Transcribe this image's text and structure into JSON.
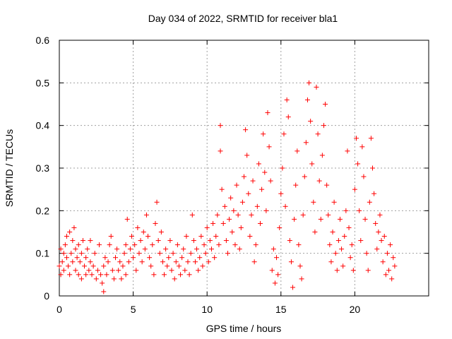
{
  "chart_data": {
    "type": "scatter",
    "title": "Day 034 of 2022, SRMTID for receiver bla1",
    "xlabel": "GPS time / hours",
    "ylabel": "SRMTID / TECUs",
    "xlim": [
      0,
      25
    ],
    "ylim": [
      0,
      0.6
    ],
    "x_ticks": [
      0,
      5,
      10,
      15,
      20
    ],
    "x_tick_labels": [
      "0",
      "5",
      "10",
      "15",
      "20"
    ],
    "y_ticks": [
      0,
      0.1,
      0.2,
      0.3,
      0.4,
      0.5,
      0.6
    ],
    "y_tick_labels": [
      "0",
      "0.1",
      "0.2",
      "0.3",
      "0.4",
      "0.5",
      "0.6"
    ],
    "grid": true,
    "marker": "+",
    "series": [
      {
        "name": "SRMTID",
        "color": "#ff0000",
        "points": [
          [
            0.0,
            0.07
          ],
          [
            0.1,
            0.05
          ],
          [
            0.1,
            0.11
          ],
          [
            0.2,
            0.08
          ],
          [
            0.3,
            0.1
          ],
          [
            0.3,
            0.06
          ],
          [
            0.4,
            0.12
          ],
          [
            0.5,
            0.09
          ],
          [
            0.5,
            0.14
          ],
          [
            0.6,
            0.07
          ],
          [
            0.7,
            0.05
          ],
          [
            0.7,
            0.15
          ],
          [
            0.8,
            0.1
          ],
          [
            0.9,
            0.13
          ],
          [
            0.9,
            0.08
          ],
          [
            1.0,
            0.16
          ],
          [
            1.1,
            0.11
          ],
          [
            1.1,
            0.06
          ],
          [
            1.2,
            0.09
          ],
          [
            1.3,
            0.12
          ],
          [
            1.3,
            0.05
          ],
          [
            1.4,
            0.08
          ],
          [
            1.5,
            0.1
          ],
          [
            1.5,
            0.04
          ],
          [
            1.6,
            0.13
          ],
          [
            1.7,
            0.07
          ],
          [
            1.8,
            0.09
          ],
          [
            1.8,
            0.05
          ],
          [
            1.9,
            0.11
          ],
          [
            2.0,
            0.06
          ],
          [
            2.1,
            0.08
          ],
          [
            2.1,
            0.13
          ],
          [
            2.2,
            0.05
          ],
          [
            2.3,
            0.07
          ],
          [
            2.4,
            0.1
          ],
          [
            2.5,
            0.04
          ],
          [
            2.6,
            0.06
          ],
          [
            2.7,
            0.12
          ],
          [
            2.8,
            0.05
          ],
          [
            2.9,
            0.03
          ],
          [
            3.0,
            0.01
          ],
          [
            3.0,
            0.07
          ],
          [
            3.1,
            0.09
          ],
          [
            3.2,
            0.05
          ],
          [
            3.3,
            0.08
          ],
          [
            3.4,
            0.12
          ],
          [
            3.5,
            0.14
          ],
          [
            3.6,
            0.06
          ],
          [
            3.7,
            0.04
          ],
          [
            3.8,
            0.09
          ],
          [
            3.9,
            0.11
          ],
          [
            4.0,
            0.06
          ],
          [
            4.1,
            0.08
          ],
          [
            4.2,
            0.04
          ],
          [
            4.3,
            0.07
          ],
          [
            4.4,
            0.1
          ],
          [
            4.5,
            0.12
          ],
          [
            4.5,
            0.05
          ],
          [
            4.6,
            0.18
          ],
          [
            4.7,
            0.08
          ],
          [
            4.8,
            0.11
          ],
          [
            4.9,
            0.14
          ],
          [
            5.0,
            0.09
          ],
          [
            5.1,
            0.12
          ],
          [
            5.2,
            0.06
          ],
          [
            5.3,
            0.16
          ],
          [
            5.4,
            0.1
          ],
          [
            5.5,
            0.13
          ],
          [
            5.6,
            0.08
          ],
          [
            5.7,
            0.15
          ],
          [
            5.8,
            0.11
          ],
          [
            5.9,
            0.19
          ],
          [
            6.0,
            0.14
          ],
          [
            6.1,
            0.09
          ],
          [
            6.2,
            0.07
          ],
          [
            6.3,
            0.12
          ],
          [
            6.4,
            0.05
          ],
          [
            6.5,
            0.17
          ],
          [
            6.6,
            0.22
          ],
          [
            6.7,
            0.13
          ],
          [
            6.8,
            0.1
          ],
          [
            6.9,
            0.15
          ],
          [
            7.0,
            0.08
          ],
          [
            7.1,
            0.05
          ],
          [
            7.2,
            0.11
          ],
          [
            7.3,
            0.07
          ],
          [
            7.4,
            0.09
          ],
          [
            7.5,
            0.13
          ],
          [
            7.6,
            0.06
          ],
          [
            7.7,
            0.1
          ],
          [
            7.8,
            0.04
          ],
          [
            7.9,
            0.08
          ],
          [
            8.0,
            0.12
          ],
          [
            8.1,
            0.07
          ],
          [
            8.2,
            0.05
          ],
          [
            8.3,
            0.09
          ],
          [
            8.4,
            0.11
          ],
          [
            8.5,
            0.06
          ],
          [
            8.6,
            0.14
          ],
          [
            8.7,
            0.08
          ],
          [
            8.8,
            0.05
          ],
          [
            8.9,
            0.1
          ],
          [
            9.0,
            0.19
          ],
          [
            9.1,
            0.13
          ],
          [
            9.2,
            0.08
          ],
          [
            9.3,
            0.11
          ],
          [
            9.4,
            0.06
          ],
          [
            9.5,
            0.09
          ],
          [
            9.6,
            0.14
          ],
          [
            9.7,
            0.07
          ],
          [
            9.8,
            0.12
          ],
          [
            9.9,
            0.1
          ],
          [
            10.0,
            0.16
          ],
          [
            10.1,
            0.08
          ],
          [
            10.2,
            0.13
          ],
          [
            10.3,
            0.11
          ],
          [
            10.4,
            0.17
          ],
          [
            10.5,
            0.09
          ],
          [
            10.6,
            0.14
          ],
          [
            10.7,
            0.19
          ],
          [
            10.8,
            0.12
          ],
          [
            10.9,
            0.4
          ],
          [
            10.9,
            0.34
          ],
          [
            11.0,
            0.25
          ],
          [
            11.1,
            0.17
          ],
          [
            11.2,
            0.21
          ],
          [
            11.3,
            0.13
          ],
          [
            11.4,
            0.1
          ],
          [
            11.5,
            0.18
          ],
          [
            11.6,
            0.23
          ],
          [
            11.7,
            0.15
          ],
          [
            11.8,
            0.2
          ],
          [
            11.9,
            0.12
          ],
          [
            12.0,
            0.26
          ],
          [
            12.1,
            0.19
          ],
          [
            12.2,
            0.11
          ],
          [
            12.3,
            0.16
          ],
          [
            12.4,
            0.22
          ],
          [
            12.5,
            0.28
          ],
          [
            12.6,
            0.39
          ],
          [
            12.7,
            0.33
          ],
          [
            12.8,
            0.24
          ],
          [
            12.9,
            0.14
          ],
          [
            13.0,
            0.19
          ],
          [
            13.1,
            0.27
          ],
          [
            13.2,
            0.08
          ],
          [
            13.3,
            0.12
          ],
          [
            13.4,
            0.21
          ],
          [
            13.5,
            0.31
          ],
          [
            13.6,
            0.17
          ],
          [
            13.7,
            0.25
          ],
          [
            13.8,
            0.38
          ],
          [
            13.9,
            0.29
          ],
          [
            14.0,
            0.2
          ],
          [
            14.1,
            0.43
          ],
          [
            14.2,
            0.35
          ],
          [
            14.3,
            0.27
          ],
          [
            14.4,
            0.06
          ],
          [
            14.5,
            0.11
          ],
          [
            14.6,
            0.03
          ],
          [
            14.7,
            0.09
          ],
          [
            14.8,
            0.05
          ],
          [
            14.9,
            0.16
          ],
          [
            15.0,
            0.24
          ],
          [
            15.1,
            0.3
          ],
          [
            15.2,
            0.38
          ],
          [
            15.3,
            0.21
          ],
          [
            15.4,
            0.46
          ],
          [
            15.5,
            0.42
          ],
          [
            15.6,
            0.13
          ],
          [
            15.7,
            0.08
          ],
          [
            15.8,
            0.02
          ],
          [
            15.9,
            0.18
          ],
          [
            16.0,
            0.26
          ],
          [
            16.1,
            0.34
          ],
          [
            16.2,
            0.12
          ],
          [
            16.3,
            0.07
          ],
          [
            16.4,
            0.04
          ],
          [
            16.5,
            0.19
          ],
          [
            16.6,
            0.28
          ],
          [
            16.7,
            0.36
          ],
          [
            16.8,
            0.46
          ],
          [
            16.9,
            0.5
          ],
          [
            17.0,
            0.41
          ],
          [
            17.1,
            0.31
          ],
          [
            17.2,
            0.22
          ],
          [
            17.3,
            0.15
          ],
          [
            17.4,
            0.49
          ],
          [
            17.5,
            0.38
          ],
          [
            17.6,
            0.27
          ],
          [
            17.7,
            0.18
          ],
          [
            17.8,
            0.33
          ],
          [
            17.9,
            0.4
          ],
          [
            18.0,
            0.45
          ],
          [
            18.1,
            0.26
          ],
          [
            18.2,
            0.19
          ],
          [
            18.3,
            0.12
          ],
          [
            18.4,
            0.08
          ],
          [
            18.5,
            0.15
          ],
          [
            18.6,
            0.22
          ],
          [
            18.7,
            0.1
          ],
          [
            18.8,
            0.06
          ],
          [
            18.9,
            0.13
          ],
          [
            19.0,
            0.18
          ],
          [
            19.1,
            0.11
          ],
          [
            19.2,
            0.07
          ],
          [
            19.3,
            0.14
          ],
          [
            19.4,
            0.2
          ],
          [
            19.5,
            0.34
          ],
          [
            19.6,
            0.16
          ],
          [
            19.7,
            0.09
          ],
          [
            19.8,
            0.12
          ],
          [
            19.9,
            0.06
          ],
          [
            20.0,
            0.25
          ],
          [
            20.1,
            0.37
          ],
          [
            20.2,
            0.31
          ],
          [
            20.3,
            0.2
          ],
          [
            20.4,
            0.13
          ],
          [
            20.5,
            0.35
          ],
          [
            20.6,
            0.28
          ],
          [
            20.7,
            0.18
          ],
          [
            20.8,
            0.1
          ],
          [
            20.9,
            0.06
          ],
          [
            21.0,
            0.22
          ],
          [
            21.1,
            0.37
          ],
          [
            21.2,
            0.3
          ],
          [
            21.3,
            0.24
          ],
          [
            21.4,
            0.17
          ],
          [
            21.5,
            0.11
          ],
          [
            21.6,
            0.15
          ],
          [
            21.7,
            0.19
          ],
          [
            21.8,
            0.13
          ],
          [
            21.9,
            0.08
          ],
          [
            22.0,
            0.14
          ],
          [
            22.1,
            0.05
          ],
          [
            22.2,
            0.1
          ],
          [
            22.3,
            0.06
          ],
          [
            22.4,
            0.12
          ],
          [
            22.5,
            0.04
          ],
          [
            22.6,
            0.09
          ],
          [
            22.7,
            0.07
          ]
        ]
      }
    ]
  }
}
